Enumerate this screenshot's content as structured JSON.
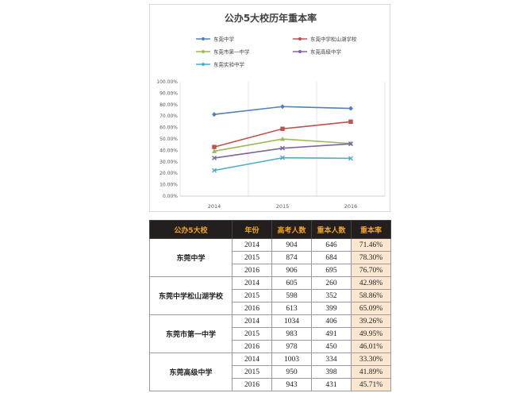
{
  "chart_data": {
    "type": "line",
    "title": "公办5大校历年重本率",
    "categories": [
      "2014",
      "2015",
      "2016"
    ],
    "ylim": [
      0,
      100
    ],
    "yticks": [
      "0.00%",
      "10.00%",
      "20.00%",
      "30.00%",
      "40.00%",
      "50.00%",
      "60.00%",
      "70.00%",
      "80.00%",
      "90.00%",
      "100.00%"
    ],
    "grid": "vertical",
    "legend": "top",
    "series": [
      {
        "name": "东莞中学",
        "values": [
          71.46,
          78.3,
          76.7
        ],
        "color": "#4f81bd",
        "marker": "diamond"
      },
      {
        "name": "东莞中学松山湖学校",
        "values": [
          42.98,
          58.86,
          65.09
        ],
        "color": "#c0504d",
        "marker": "square"
      },
      {
        "name": "东莞市第一中学",
        "values": [
          39.26,
          49.95,
          46.01
        ],
        "color": "#9bbb59",
        "marker": "triangle"
      },
      {
        "name": "东莞高级中学",
        "values": [
          33.3,
          41.89,
          45.71
        ],
        "color": "#8064a2",
        "marker": "x"
      },
      {
        "name": "东莞实验中学",
        "values": [
          22.5,
          33.5,
          33.0
        ],
        "color": "#4bacc6",
        "marker": "x"
      }
    ]
  },
  "table": {
    "headers": [
      "公办5大校",
      "年份",
      "高考人数",
      "重本人数",
      "重本率"
    ],
    "groups": [
      {
        "school": "东莞中学",
        "rows": [
          [
            "2014",
            "904",
            "646",
            "71.46%"
          ],
          [
            "2015",
            "874",
            "684",
            "78.30%"
          ],
          [
            "2016",
            "906",
            "695",
            "76.70%"
          ]
        ]
      },
      {
        "school": "东莞中学松山湖学校",
        "rows": [
          [
            "2014",
            "605",
            "260",
            "42.98%"
          ],
          [
            "2015",
            "598",
            "352",
            "58.86%"
          ],
          [
            "2016",
            "613",
            "399",
            "65.09%"
          ]
        ]
      },
      {
        "school": "东莞市第一中学",
        "rows": [
          [
            "2014",
            "1034",
            "406",
            "39.26%"
          ],
          [
            "2015",
            "983",
            "491",
            "49.95%"
          ],
          [
            "2016",
            "978",
            "450",
            "46.01%"
          ]
        ]
      },
      {
        "school": "东莞高级中学",
        "rows": [
          [
            "2014",
            "1003",
            "334",
            "33.30%"
          ],
          [
            "2015",
            "950",
            "398",
            "41.89%"
          ],
          [
            "2016",
            "943",
            "431",
            "45.71%"
          ]
        ]
      }
    ]
  }
}
